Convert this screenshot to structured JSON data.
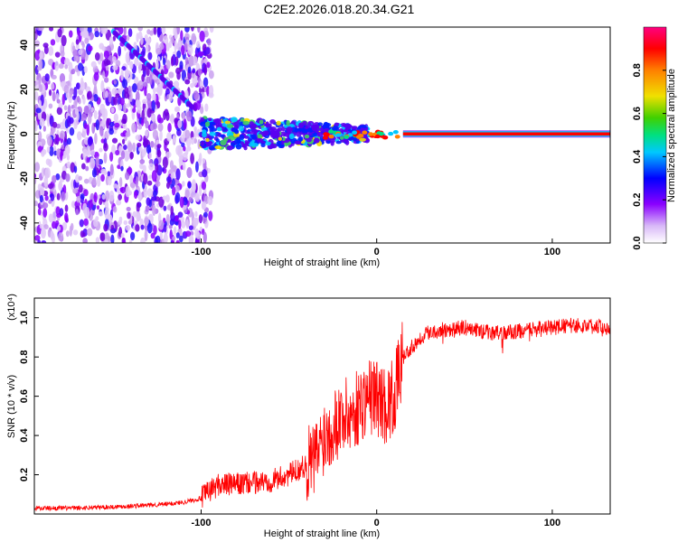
{
  "title": "C2E2.2026.018.20.34.G21",
  "chart_data": [
    {
      "type": "heatmap",
      "xlabel": "Height of straight line (km)",
      "ylabel": "Frequency (Hz)",
      "xlim": [
        -195,
        133
      ],
      "ylim": [
        -49,
        48
      ],
      "x_ticks": [
        -100,
        0,
        100
      ],
      "y_ticks": [
        -40,
        -20,
        0,
        20,
        40
      ],
      "colorbar": {
        "label": "Normalized spectral amplitude",
        "range": [
          0,
          1
        ],
        "ticks": [
          "0.0",
          "0.2",
          "0.4",
          "0.6",
          "0.8"
        ],
        "colors": [
          "#ffffff",
          "#c9a0f0",
          "#8a00ff",
          "#0000ff",
          "#00c8ff",
          "#00e080",
          "#60d000",
          "#f0e000",
          "#ff8000",
          "#ff0000",
          "#ff0080"
        ]
      },
      "features": {
        "noise_region_x": [
          -195,
          -100
        ],
        "carrier_band_x": [
          -100,
          133
        ],
        "carrier_frequency": 0
      }
    },
    {
      "type": "line",
      "xlabel": "Height of straight line (km)",
      "ylabel": "SNR (10 * v/v)",
      "y_scale_label": "(x10⁴)",
      "xlim": [
        -195,
        133
      ],
      "ylim": [
        0,
        1.1
      ],
      "x_ticks": [
        -100,
        0,
        100
      ],
      "y_ticks": [
        "0.2",
        "0.4",
        "0.6",
        "0.8",
        "1.0"
      ],
      "color": "#ff0000",
      "series": [
        {
          "x": [
            -195,
            -170,
            -140,
            -120,
            -110,
            -100,
            -95,
            -90,
            -80,
            -70,
            -60,
            -50,
            -40,
            -35,
            -30,
            -25,
            -20,
            -15,
            -10,
            -5,
            0,
            5,
            10,
            15,
            20,
            25,
            30,
            40,
            50,
            60,
            70,
            80,
            90,
            100,
            110,
            120,
            133
          ],
          "values": [
            0.03,
            0.03,
            0.04,
            0.05,
            0.06,
            0.08,
            0.12,
            0.15,
            0.15,
            0.16,
            0.17,
            0.2,
            0.25,
            0.28,
            0.4,
            0.45,
            0.5,
            0.5,
            0.55,
            0.6,
            0.6,
            0.55,
            0.6,
            0.8,
            0.85,
            0.9,
            0.93,
            0.94,
            0.95,
            0.93,
            0.92,
            0.93,
            0.94,
            0.95,
            0.96,
            0.96,
            0.95
          ]
        }
      ]
    }
  ]
}
